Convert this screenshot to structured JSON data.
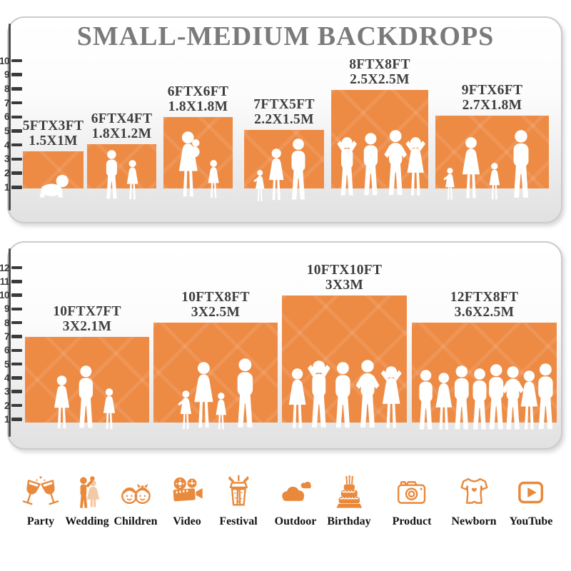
{
  "title": "SMALL-MEDIUM BACKDROPS",
  "colors": {
    "backdrop_orange": "#ED8B45",
    "icon_orange": "#E8893C",
    "title_gray": "#7A7A7A",
    "label_dark": "#3E3E3E",
    "ruler_dark": "#3A3A3A",
    "panel_border": "#CBCBCB"
  },
  "panels": [
    {
      "name": "small backdrops panel",
      "ruler": [
        "10",
        "9",
        "8",
        "7",
        "6",
        "5",
        "4",
        "3",
        "2",
        "1"
      ],
      "backdrops": [
        {
          "size_ft": "5FTX3FT",
          "size_m": "1.5X1M",
          "figures": "crawling-baby"
        },
        {
          "size_ft": "6FTX4FT",
          "size_m": "1.8X1.2M",
          "figures": "boy-and-girl"
        },
        {
          "size_ft": "6FTX6FT",
          "size_m": "1.8X1.8M",
          "figures": "mother-holding-baby-and-girl"
        },
        {
          "size_ft": "7FTX5FT",
          "size_m": "2.2X1.5M",
          "figures": "girl-woman-man"
        },
        {
          "size_ft": "8FTX8FT",
          "size_m": "2.5X2.5M",
          "figures": "four-adults-posing"
        },
        {
          "size_ft": "9FTX6FT",
          "size_m": "2.7X1.8M",
          "figures": "family-of-four"
        }
      ]
    },
    {
      "name": "medium backdrops panel",
      "ruler": [
        "12",
        "11",
        "10",
        "9",
        "8",
        "7",
        "6",
        "5",
        "4",
        "3",
        "2",
        "1"
      ],
      "backdrops": [
        {
          "size_ft": "10FTX7FT",
          "size_m": "3X2.1M",
          "figures": "woman-man-girl"
        },
        {
          "size_ft": "10FTX8FT",
          "size_m": "3X2.5M",
          "figures": "family-holding-hands"
        },
        {
          "size_ft": "10FTX10FT",
          "size_m": "3X3M",
          "figures": "five-adults-posing"
        },
        {
          "size_ft": "12FTX8FT",
          "size_m": "3.6X2.5M",
          "figures": "group-of-eight-adults"
        }
      ]
    }
  ],
  "footer": {
    "categories": [
      {
        "label": "Party",
        "icon": "party-icon"
      },
      {
        "label": "Wedding",
        "icon": "wedding-icon"
      },
      {
        "label": "Children",
        "icon": "children-icon"
      },
      {
        "label": "Video",
        "icon": "video-icon"
      },
      {
        "label": "Festival",
        "icon": "festival-icon"
      },
      {
        "label": "Outdoor",
        "icon": "outdoor-icon"
      },
      {
        "label": "Birthday",
        "icon": "birthday-icon"
      },
      {
        "label": "Product",
        "icon": "product-icon"
      },
      {
        "label": "Newborn",
        "icon": "newborn-icon"
      },
      {
        "label": "YouTube",
        "icon": "youtube-icon"
      }
    ]
  },
  "chart_data": [
    {
      "type": "bar",
      "title": "SMALL-MEDIUM BACKDROPS",
      "categories": [
        "5FTX3FT",
        "6FTX4FT",
        "6FTX6FT",
        "7FTX5FT",
        "8FTX8FT",
        "9FTX6FT"
      ],
      "series": [
        {
          "name": "width_ft",
          "values": [
            5,
            6,
            6,
            7,
            8,
            9
          ]
        },
        {
          "name": "height_ft",
          "values": [
            3,
            4,
            6,
            5,
            8,
            6
          ]
        }
      ],
      "labels_metric": [
        "1.5X1M",
        "1.8X1.2M",
        "1.8X1.8M",
        "2.2X1.5M",
        "2.5X2.5M",
        "2.7X1.8M"
      ],
      "xlabel": "",
      "ylabel": "feet (ruler)",
      "ylim": [
        0,
        10
      ],
      "legend": false,
      "grid": false
    },
    {
      "type": "bar",
      "title": "",
      "categories": [
        "10FTX7FT",
        "10FTX8FT",
        "10FTX10FT",
        "12FTX8FT"
      ],
      "series": [
        {
          "name": "width_ft",
          "values": [
            10,
            10,
            10,
            12
          ]
        },
        {
          "name": "height_ft",
          "values": [
            7,
            8,
            10,
            8
          ]
        }
      ],
      "labels_metric": [
        "3X2.1M",
        "3X2.5M",
        "3X3M",
        "3.6X2.5M"
      ],
      "xlabel": "",
      "ylabel": "feet (ruler)",
      "ylim": [
        0,
        12
      ],
      "legend": false,
      "grid": false
    }
  ]
}
